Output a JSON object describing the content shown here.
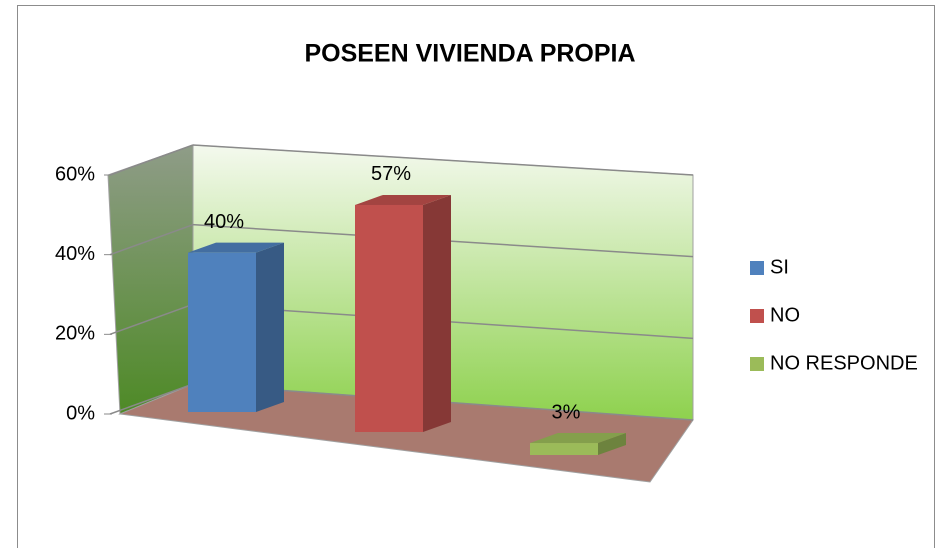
{
  "chart_data": {
    "type": "bar3d",
    "title": "POSEEN VIVIENDA PROPIA",
    "categories": [
      "SI",
      "NO",
      "NO RESPONDE"
    ],
    "values": [
      40,
      57,
      3
    ],
    "value_labels": [
      "40%",
      "57%",
      "3%"
    ],
    "colors": [
      "#4f81bd",
      "#c0504d",
      "#9bbb59"
    ],
    "ylim": [
      0,
      60
    ],
    "yticks": [
      {
        "value": 0,
        "label": "0%"
      },
      {
        "value": 20,
        "label": "20%"
      },
      {
        "value": 40,
        "label": "40%"
      },
      {
        "value": 60,
        "label": "60%"
      }
    ],
    "grid": true,
    "legend": "right"
  }
}
